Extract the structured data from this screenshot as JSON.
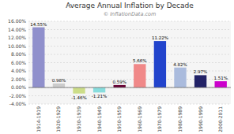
{
  "chart_data": {
    "type": "bar",
    "title": "Average Annual Inflation by Decade",
    "subtitle": "© InflationData.com",
    "categories": [
      "1914-1919",
      "1920-1929",
      "1930-1939",
      "1940-1949",
      "1950-1959",
      "1960-1969",
      "1970-1979",
      "1980-1989",
      "1990-1999",
      "2000-2011"
    ],
    "values": [
      14.55,
      0.98,
      -1.46,
      -1.21,
      0.59,
      5.66,
      11.22,
      4.82,
      2.97,
      1.51
    ],
    "value_labels": [
      "14.55%",
      "0.98%",
      "-1.46%",
      "-1.21%",
      "0.59%",
      "5.66%",
      "11.22%",
      "4.82%",
      "2.97%",
      "1.51%"
    ],
    "colors": [
      "#9090cc",
      "#cccccc",
      "#ccdd88",
      "#88dddd",
      "#660033",
      "#f08888",
      "#2244cc",
      "#aabbdd",
      "#222266",
      "#cc00cc"
    ],
    "ylim": [
      -4.0,
      16.0
    ],
    "yticks": [
      {
        "value": -4,
        "label": "-4.00%"
      },
      {
        "value": -2,
        "label": "-2.00%"
      },
      {
        "value": 0,
        "label": "0.00%"
      },
      {
        "value": 2,
        "label": "2.00%"
      },
      {
        "value": 4,
        "label": "4.00%"
      },
      {
        "value": 6,
        "label": "6.00%"
      },
      {
        "value": 8,
        "label": "8.00%"
      },
      {
        "value": 10,
        "label": "10.00%"
      },
      {
        "value": 12,
        "label": "12.00%"
      },
      {
        "value": 14,
        "label": "14.00%"
      },
      {
        "value": 16,
        "label": "16.00%"
      }
    ],
    "grid": true,
    "data_labels": true
  }
}
